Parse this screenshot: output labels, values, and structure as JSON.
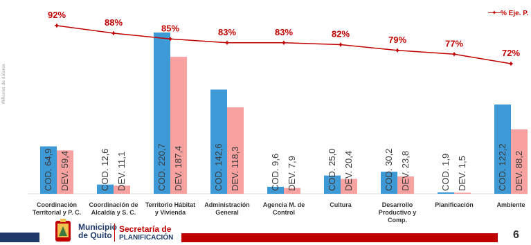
{
  "chart_data": {
    "type": "bar",
    "ylabel": "Millones de dólares",
    "categories": [
      [
        "Coordinación",
        "Territorial y P. C."
      ],
      [
        "Coordinación de",
        "Alcaldía y S. C."
      ],
      [
        "Territorio Hábitat",
        "y Vivienda"
      ],
      [
        "Administración",
        "General"
      ],
      [
        "Agencia M. de",
        "Control"
      ],
      [
        "Cultura"
      ],
      [
        "Desarrollo",
        "Productivo y",
        "Comp."
      ],
      [
        "Planificación"
      ],
      [
        "Ambiente"
      ]
    ],
    "series": [
      {
        "name": "COD.",
        "color": "#3e9ad6",
        "values": [
          64.9,
          12.6,
          220.7,
          142.6,
          9.6,
          25.0,
          30.2,
          1.9,
          122.2
        ],
        "labels": [
          "COD. 64,9",
          "COD. 12,6",
          "COD. 220,7",
          "COD. 142,6",
          "COD. 9,6",
          "COD. 25,0",
          "COD. 30,2",
          "COD. 1,9",
          "COD. 122,2"
        ]
      },
      {
        "name": "DEV.",
        "color": "#f7a1a1",
        "values": [
          59.4,
          11.1,
          187.4,
          118.3,
          7.9,
          20.4,
          23.8,
          1.5,
          88.2
        ],
        "labels": [
          "DEV. 59,4",
          "DEV. 11,1",
          "DEV. 187,4",
          "DEV. 118,3",
          "DEV. 7,9",
          "DEV. 20,4",
          "DEV. 23,8",
          "DEV. 1,5",
          "DEV. 88,2"
        ]
      }
    ],
    "line": {
      "name": "% Eje. P.",
      "color": "#c00000",
      "values": [
        92,
        88,
        85,
        83,
        83,
        82,
        79,
        77,
        72
      ],
      "labels": [
        "92%",
        "88%",
        "85%",
        "83%",
        "83%",
        "82%",
        "79%",
        "77%",
        "72%"
      ]
    }
  },
  "legend": {
    "line_label": "% Eje. P."
  },
  "footer": {
    "municipio_line1": "Municipio",
    "municipio_line2": "de Quito",
    "secretaria_line1": "Secretaría de",
    "secretaria_line2": "PLANIFICACIÓN",
    "page_number": "6"
  }
}
